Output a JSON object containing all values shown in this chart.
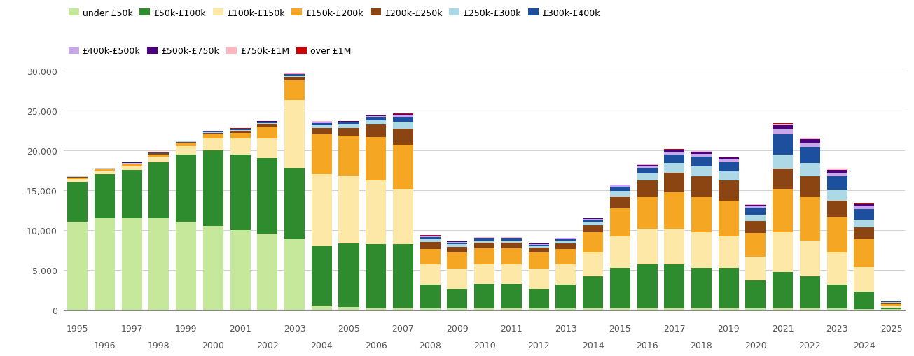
{
  "years": [
    1995,
    1996,
    1997,
    1998,
    1999,
    2000,
    2001,
    2002,
    2003,
    2004,
    2005,
    2006,
    2007,
    2008,
    2009,
    2010,
    2011,
    2012,
    2013,
    2014,
    2015,
    2016,
    2017,
    2018,
    2019,
    2020,
    2021,
    2022,
    2023,
    2024,
    2025
  ],
  "categories": [
    "under £50k",
    "£50k-£100k",
    "£100k-£150k",
    "£150k-£200k",
    "£200k-£250k",
    "£250k-£300k",
    "£300k-£400k",
    "£400k-£500k",
    "£500k-£750k",
    "£750k-£1M",
    "over £1M"
  ],
  "colors": [
    "#c5e89a",
    "#2e8b2e",
    "#fde8a8",
    "#f5a623",
    "#8b4513",
    "#add8e6",
    "#1c4f9e",
    "#c8a8e8",
    "#4b0082",
    "#ffb6c1",
    "#cc0000"
  ],
  "data": {
    "under £50k": [
      11000,
      11500,
      11500,
      11500,
      11000,
      10500,
      10000,
      9500,
      8800,
      500,
      300,
      200,
      200,
      150,
      150,
      200,
      200,
      150,
      150,
      200,
      200,
      200,
      200,
      200,
      200,
      150,
      200,
      200,
      150,
      100,
      30
    ],
    "£50k-£100k": [
      5000,
      5500,
      6000,
      7000,
      8500,
      9500,
      9500,
      9500,
      9000,
      7500,
      8000,
      8000,
      8000,
      3000,
      2500,
      3000,
      3000,
      2500,
      3000,
      4000,
      5000,
      5500,
      5500,
      5000,
      5000,
      3500,
      4500,
      4000,
      3000,
      2200,
      200
    ],
    "£100k-£150k": [
      400,
      450,
      500,
      700,
      1000,
      1500,
      2000,
      2500,
      8500,
      9000,
      8500,
      8000,
      7000,
      2500,
      2500,
      2500,
      2500,
      2500,
      2500,
      3000,
      4000,
      4500,
      4500,
      4500,
      4000,
      3000,
      5000,
      4500,
      4000,
      3000,
      300
    ],
    "£150k-£200k": [
      200,
      200,
      250,
      300,
      400,
      500,
      700,
      1500,
      2500,
      5000,
      5000,
      5500,
      5500,
      2000,
      2000,
      2000,
      2000,
      2000,
      2000,
      2500,
      3500,
      4000,
      4500,
      4500,
      4500,
      3000,
      5500,
      5500,
      4500,
      3500,
      200
    ],
    "£200k-£250k": [
      80,
      80,
      100,
      120,
      150,
      200,
      250,
      300,
      400,
      800,
      1000,
      1500,
      2000,
      800,
      700,
      700,
      700,
      600,
      700,
      900,
      1500,
      2000,
      2500,
      2500,
      2500,
      1500,
      2500,
      2500,
      2000,
      1500,
      100
    ],
    "£250k-£300k": [
      40,
      40,
      50,
      60,
      80,
      100,
      120,
      150,
      200,
      350,
      400,
      600,
      900,
      400,
      350,
      300,
      300,
      250,
      300,
      400,
      700,
      900,
      1200,
      1300,
      1200,
      800,
      1800,
      1700,
      1400,
      1000,
      80
    ],
    "£300k-£400k": [
      30,
      30,
      35,
      45,
      60,
      80,
      100,
      120,
      160,
      280,
      280,
      380,
      600,
      280,
      220,
      220,
      220,
      180,
      220,
      280,
      500,
      700,
      1100,
      1200,
      1100,
      800,
      2500,
      2000,
      1700,
      1300,
      80
    ],
    "£400k-£500k": [
      15,
      15,
      18,
      22,
      28,
      36,
      45,
      55,
      65,
      110,
      110,
      140,
      200,
      100,
      75,
      75,
      75,
      65,
      75,
      95,
      160,
      210,
      330,
      380,
      370,
      260,
      700,
      600,
      450,
      380,
      30
    ],
    "£500k-£750k": [
      10,
      10,
      12,
      16,
      20,
      24,
      28,
      32,
      45,
      72,
      72,
      92,
      140,
      65,
      55,
      55,
      55,
      48,
      55,
      65,
      105,
      160,
      210,
      250,
      240,
      168,
      480,
      430,
      330,
      270,
      20
    ],
    "£750k-£1M": [
      5,
      5,
      6,
      7,
      8,
      10,
      12,
      14,
      18,
      28,
      28,
      36,
      50,
      23,
      18,
      18,
      18,
      16,
      18,
      22,
      33,
      48,
      65,
      75,
      72,
      50,
      140,
      115,
      95,
      76,
      8
    ],
    "over £1M": [
      3,
      3,
      4,
      5,
      5,
      6,
      7,
      9,
      11,
      18,
      18,
      23,
      28,
      14,
      11,
      11,
      11,
      9,
      11,
      14,
      18,
      27,
      36,
      42,
      40,
      28,
      78,
      64,
      56,
      46,
      5
    ]
  },
  "ylim": [
    0,
    30000
  ],
  "yticks": [
    0,
    5000,
    10000,
    15000,
    20000,
    25000,
    30000
  ],
  "odd_years": [
    1995,
    1997,
    1999,
    2001,
    2003,
    2005,
    2007,
    2009,
    2011,
    2013,
    2015,
    2017,
    2019,
    2021,
    2023,
    2025
  ],
  "even_years": [
    1996,
    1998,
    2000,
    2002,
    2004,
    2006,
    2008,
    2010,
    2012,
    2014,
    2016,
    2018,
    2020,
    2022,
    2024
  ],
  "figsize": [
    13.05,
    5.1
  ],
  "dpi": 100,
  "bar_width": 0.75,
  "xlim": [
    1994.5,
    2025.5
  ]
}
